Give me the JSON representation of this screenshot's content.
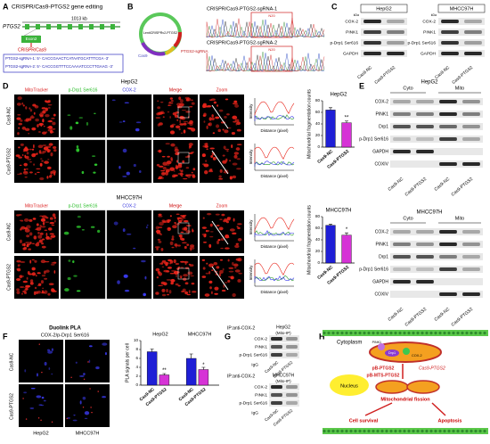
{
  "figure": {
    "A": {
      "label": "A",
      "title": "CRISPR/Cas9-PTGS2 gene editing",
      "gene": "PTGS2",
      "length": "1013 kb",
      "exon": "Exon2",
      "tool": "CRISPR/Cas9",
      "sgrnas": [
        "PTGS2-sgRNA-1:  5'- CACCGAACTCATAATGCATTTCGA -3'",
        "PTGS2-sgRNA-2:  5'- CACCGGTTTCCAAAATCCCTTGAAG -3'"
      ]
    },
    "B": {
      "label": "B",
      "plasmid": "LentiCRISPRv2-PTGS2",
      "cas9": "Cas9",
      "sgrna": "PTGS2-sgRNA",
      "traces": [
        "CRISPR/Cas9-PTGS2-sgRNA-1",
        "CRISPR/Cas9-PTGS2-sgRNA-2"
      ],
      "target": "N20"
    },
    "C": {
      "label": "C",
      "cells": [
        "HepG2",
        "MHCC97H"
      ],
      "unit": "kDa",
      "proteins": [
        "COX-2",
        "PINK1",
        "p-Drp1 Ser616",
        "GAPDH"
      ],
      "lanes": [
        "Cas9-NC",
        "Cas9-PTGS2"
      ]
    },
    "D": {
      "label": "D",
      "cells": [
        "HepG2",
        "MHCC97H"
      ],
      "channels": [
        "MitoTracker",
        "p-Drp1 Ser616",
        "COX-2",
        "Merge",
        "Zoom"
      ],
      "groups": [
        "Cas9-NC",
        "Cas9-PTGS2"
      ],
      "plot_y": "Intensity",
      "plot_x": "Distance (pixel)"
    },
    "E": {
      "label": "E",
      "cells": [
        "HepG2",
        "MHCC97H"
      ],
      "fractions": [
        "Cyto",
        "Mito"
      ],
      "proteins": [
        "COX-2",
        "PINK1",
        "Drp1",
        "p-Drp1 Ser616",
        "GAPDH",
        "COXIV"
      ],
      "lanes": [
        "Cas9-NC",
        "Cas9-PTGS2",
        "Cas9-NC",
        "Cas9-PTGS2"
      ]
    },
    "F": {
      "label": "F",
      "title": "Duolink PLA",
      "subtitle": "COX-2/p-Drp1 Ser616",
      "groups": [
        "Cas9-NC",
        "Cas9-PTGS2"
      ],
      "cells": [
        "HepG2",
        "MHCC97H"
      ]
    },
    "G": {
      "label": "G",
      "ip": "IP:anti-COX-2",
      "cells": [
        "HepG2",
        "MHCC97H"
      ],
      "fraction": "(Mito-IP)",
      "proteins": [
        "COX-2",
        "PINK1",
        "p-Drp1 Ser616"
      ],
      "control": "IgG",
      "lanes": [
        "Cas9-NC",
        "Cas9-PTGS2"
      ]
    },
    "H": {
      "label": "H",
      "cytoplasm": "Cytoplasm",
      "nucleus": "Nucleus",
      "pink1": "PINK1",
      "drp1": "Drp1",
      "cox2": "COX-2",
      "plasmids": [
        "pB-PTGS2",
        "pB-MTS-PTGS2"
      ],
      "knockout": "Cas9-PTGS2",
      "fission": "Mitochondrial fission",
      "survival": "Cell survival",
      "apoptosis": "Apoptosis"
    }
  },
  "chart_data": [
    {
      "type": "bar",
      "title": "HepG2",
      "ylabel": "Mitochondrial fragmentation counts",
      "categories": [
        "Cas9-NC",
        "Cas9-PTGS2"
      ],
      "values": [
        64,
        42
      ],
      "errors": [
        4,
        3
      ],
      "colors": [
        "#1f1fd6",
        "#d633d6"
      ],
      "ylim": [
        0,
        80
      ],
      "yticks": [
        0,
        20,
        40,
        60,
        80
      ],
      "annotation": "**"
    },
    {
      "type": "bar",
      "title": "MHCC97H",
      "ylabel": "Mitochondrial fragmentation counts",
      "categories": [
        "Cas9-NC",
        "Cas9-PTGS2"
      ],
      "values": [
        65,
        48
      ],
      "errors": [
        2,
        4
      ],
      "colors": [
        "#1f1fd6",
        "#d633d6"
      ],
      "ylim": [
        0,
        80
      ],
      "yticks": [
        0,
        20,
        40,
        60,
        80
      ],
      "annotation": "*"
    },
    {
      "type": "bar",
      "ylabel": "PLA signals per cell",
      "categories": [
        "HepG2",
        "MHCC97H"
      ],
      "series": [
        {
          "name": "Cas9-NC",
          "color": "#1f1fd6",
          "values": [
            7.5,
            6.0
          ],
          "errors": [
            0.6,
            1.0
          ]
        },
        {
          "name": "Cas9-PTGS2",
          "color": "#d633d6",
          "values": [
            2.3,
            3.5
          ],
          "errors": [
            0.3,
            0.5
          ],
          "annotations": [
            "**",
            "*"
          ]
        }
      ],
      "ylim": [
        0,
        10
      ],
      "yticks": [
        0,
        2,
        4,
        6,
        8,
        10
      ]
    }
  ]
}
